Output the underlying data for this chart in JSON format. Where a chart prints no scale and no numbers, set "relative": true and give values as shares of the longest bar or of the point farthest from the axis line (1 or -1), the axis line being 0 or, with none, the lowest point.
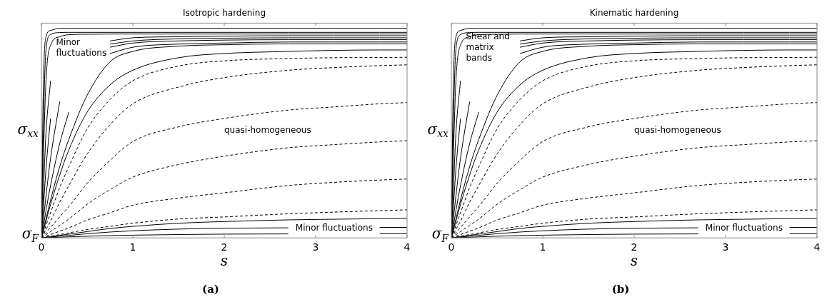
{
  "chart_data": [
    {
      "type": "line",
      "title": "Isotropic hardening",
      "xlabel": "s",
      "ylabel": "σ$_{xx}$",
      "relative": true,
      "xlim": [
        0,
        4
      ],
      "xticks": [
        0,
        1,
        2,
        3,
        4
      ],
      "grid": false,
      "legend": false,
      "marker": "none",
      "x": [
        0,
        0.02,
        0.05,
        0.1,
        0.2,
        0.3,
        0.5,
        0.75,
        1,
        1.5,
        2,
        2.7,
        3.2,
        3.7,
        4
      ],
      "series": [
        {
          "color": "#000000",
          "line_style": "solid",
          "values": [
            0,
            0.7,
            0.96,
            0.99,
            1,
            1,
            1,
            1,
            1,
            1,
            1,
            1,
            1,
            1,
            1
          ]
        },
        {
          "color": "#000000",
          "line_style": "solid",
          "values": [
            0,
            0.5,
            0.9,
            0.97,
            0.98,
            0.981,
            0.981,
            0.981,
            0.981,
            0.981,
            0.981,
            0.981,
            0.981,
            0.981,
            0.981
          ]
        },
        {
          "color": "#000000",
          "line_style": "solid",
          "values": [
            0,
            0.35,
            0.75,
            0.92,
            0.96,
            0.97,
            0.972,
            0.973,
            0.973,
            0.973,
            0.973,
            0.973,
            0.973,
            0.973,
            0.973
          ]
        },
        {
          "color": "#000000",
          "line_style": "solid",
          "x": [
            0,
            0.02,
            0.05,
            0.1
          ],
          "values": [
            0,
            0.2,
            0.5,
            0.75
          ]
        },
        {
          "color": "#000000",
          "line_style": "solid",
          "x": [
            0.75,
            1,
            1.5,
            2,
            2.7,
            3.2,
            3.7,
            4
          ],
          "values": [
            0.94,
            0.955,
            0.96,
            0.963,
            0.965,
            0.965,
            0.965,
            0.965
          ]
        },
        {
          "color": "#000000",
          "line_style": "solid",
          "x": [
            0,
            0.02,
            0.05,
            0.1
          ],
          "values": [
            0,
            0.13,
            0.33,
            0.57
          ]
        },
        {
          "color": "#000000",
          "line_style": "solid",
          "x": [
            0.75,
            1,
            1.5,
            2,
            2.7,
            3.2,
            3.7,
            4
          ],
          "values": [
            0.925,
            0.94,
            0.95,
            0.953,
            0.955,
            0.955,
            0.955,
            0.955
          ]
        },
        {
          "color": "#000000",
          "line_style": "solid",
          "x": [
            0,
            0.02,
            0.05,
            0.1,
            0.2
          ],
          "values": [
            0,
            0.08,
            0.2,
            0.38,
            0.65
          ]
        },
        {
          "color": "#000000",
          "line_style": "solid",
          "x": [
            0.75,
            1,
            1.5,
            2,
            2.7,
            3.2,
            3.7,
            4
          ],
          "values": [
            0.91,
            0.93,
            0.94,
            0.944,
            0.946,
            0.946,
            0.946,
            0.946
          ]
        },
        {
          "color": "#000000",
          "line_style": "solid",
          "x": [
            0,
            0.02,
            0.05,
            0.1,
            0.2,
            0.3
          ],
          "values": [
            0,
            0.05,
            0.13,
            0.25,
            0.45,
            0.6
          ]
        },
        {
          "color": "#000000",
          "line_style": "solid",
          "x": [
            0.75,
            1,
            1.5,
            2,
            2.7,
            3.2,
            3.7,
            4
          ],
          "values": [
            0.88,
            0.91,
            0.925,
            0.93,
            0.935,
            0.935,
            0.935,
            0.935
          ]
        },
        {
          "color": "#000000",
          "line_style": "solid",
          "values": [
            0,
            0.04,
            0.09,
            0.18,
            0.34,
            0.47,
            0.68,
            0.84,
            0.89,
            0.915,
            0.922,
            0.926,
            0.926,
            0.926,
            0.926
          ]
        },
        {
          "color": "#000000",
          "line_style": "solid",
          "values": [
            0,
            0.03,
            0.08,
            0.16,
            0.3,
            0.42,
            0.6,
            0.73,
            0.8,
            0.86,
            0.88,
            0.89,
            0.895,
            0.897,
            0.897
          ]
        },
        {
          "color": "#000000",
          "line_style": "dashed",
          "values": [
            0,
            0.02,
            0.06,
            0.12,
            0.24,
            0.34,
            0.52,
            0.66,
            0.75,
            0.82,
            0.845,
            0.856,
            0.86,
            0.861,
            0.862
          ]
        },
        {
          "color": "#000000",
          "line_style": "dashed",
          "values": [
            0,
            0.015,
            0.04,
            0.08,
            0.17,
            0.25,
            0.4,
            0.54,
            0.64,
            0.72,
            0.765,
            0.8,
            0.813,
            0.822,
            0.826
          ]
        },
        {
          "color": "#000000",
          "line_style": "dashed",
          "values": [
            0,
            0.01,
            0.025,
            0.05,
            0.1,
            0.15,
            0.26,
            0.37,
            0.46,
            0.53,
            0.57,
            0.61,
            0.625,
            0.64,
            0.646
          ]
        },
        {
          "color": "#000000",
          "line_style": "dashed",
          "values": [
            0,
            0.006,
            0.015,
            0.03,
            0.06,
            0.09,
            0.16,
            0.23,
            0.29,
            0.35,
            0.39,
            0.43,
            0.445,
            0.458,
            0.464
          ]
        },
        {
          "color": "#000000",
          "line_style": "dashed",
          "values": [
            0,
            0.003,
            0.008,
            0.016,
            0.032,
            0.048,
            0.085,
            0.12,
            0.156,
            0.19,
            0.215,
            0.25,
            0.265,
            0.276,
            0.281
          ]
        },
        {
          "color": "#000000",
          "line_style": "dashed",
          "values": [
            0,
            0.0015,
            0.004,
            0.008,
            0.016,
            0.024,
            0.04,
            0.055,
            0.07,
            0.09,
            0.1,
            0.115,
            0.123,
            0.13,
            0.134
          ]
        },
        {
          "color": "#000000",
          "line_style": "solid",
          "values": [
            0,
            0.001,
            0.003,
            0.006,
            0.012,
            0.018,
            0.03,
            0.045,
            0.055,
            0.07,
            0.078,
            0.086,
            0.089,
            0.092,
            0.093
          ]
        },
        {
          "color": "#000000",
          "line_style": "solid",
          "x": [
            0,
            0.05,
            0.1,
            0.2,
            0.3,
            0.5,
            0.75,
            1,
            1.5,
            2,
            2.7
          ],
          "values": [
            0,
            0.002,
            0.004,
            0.008,
            0.012,
            0.02,
            0.028,
            0.034,
            0.042,
            0.046,
            0.048
          ]
        },
        {
          "color": "#000000",
          "line_style": "solid",
          "x": [
            3.7,
            4
          ],
          "values": [
            0.05,
            0.05
          ]
        },
        {
          "color": "#000000",
          "line_style": "solid",
          "x": [
            0,
            0.05,
            0.1,
            0.2,
            0.3,
            0.5,
            0.75,
            1,
            1.5,
            2,
            2.7
          ],
          "values": [
            0,
            0.001,
            0.002,
            0.003,
            0.005,
            0.008,
            0.011,
            0.013,
            0.016,
            0.018,
            0.019
          ]
        },
        {
          "color": "#000000",
          "line_style": "solid",
          "x": [
            3.7,
            4
          ],
          "values": [
            0.02,
            0.02
          ]
        }
      ],
      "annotations": [
        "σ$_{F}$",
        "Minor fluctuations",
        "quasi-homogeneous",
        "Minor fluctuations",
        "(a)"
      ]
    },
    {
      "type": "line",
      "title": "Kinematic hardening",
      "xlabel": "s",
      "ylabel": "σ$_{xx}$",
      "relative": true,
      "xlim": [
        0,
        4
      ],
      "xticks": [
        0,
        1,
        2,
        3,
        4
      ],
      "grid": false,
      "legend": false,
      "marker": "none",
      "x": [
        0,
        0.02,
        0.05,
        0.1,
        0.2,
        0.3,
        0.5,
        0.75,
        1,
        1.5,
        2,
        2.7,
        3.2,
        3.7,
        4
      ],
      "series": [
        {
          "color": "#000000",
          "line_style": "solid",
          "values": [
            0,
            0.7,
            0.96,
            0.99,
            1,
            1,
            1,
            1,
            1,
            1,
            1,
            1,
            1,
            1,
            1
          ]
        },
        {
          "color": "#000000",
          "line_style": "solid",
          "values": [
            0,
            0.5,
            0.9,
            0.97,
            0.98,
            0.981,
            0.981,
            0.981,
            0.981,
            0.981,
            0.981,
            0.981,
            0.981,
            0.981,
            0.981
          ]
        },
        {
          "color": "#000000",
          "line_style": "solid",
          "values": [
            0,
            0.35,
            0.75,
            0.92,
            0.96,
            0.97,
            0.972,
            0.973,
            0.973,
            0.973,
            0.973,
            0.973,
            0.973,
            0.973,
            0.973
          ]
        },
        {
          "color": "#000000",
          "line_style": "solid",
          "x": [
            0,
            0.02,
            0.05,
            0.1
          ],
          "values": [
            0,
            0.2,
            0.5,
            0.75
          ]
        },
        {
          "color": "#000000",
          "line_style": "solid",
          "x": [
            0.75,
            1,
            1.5,
            2,
            2.7,
            3.2,
            3.7,
            4
          ],
          "values": [
            0.94,
            0.955,
            0.96,
            0.963,
            0.965,
            0.965,
            0.965,
            0.965
          ]
        },
        {
          "color": "#000000",
          "line_style": "solid",
          "x": [
            0,
            0.02,
            0.05,
            0.1
          ],
          "values": [
            0,
            0.13,
            0.33,
            0.57
          ]
        },
        {
          "color": "#000000",
          "line_style": "solid",
          "x": [
            0.75,
            1,
            1.5,
            2,
            2.7,
            3.2,
            3.7,
            4
          ],
          "values": [
            0.925,
            0.94,
            0.95,
            0.953,
            0.955,
            0.955,
            0.955,
            0.955
          ]
        },
        {
          "color": "#000000",
          "line_style": "solid",
          "x": [
            0,
            0.02,
            0.05,
            0.1,
            0.2
          ],
          "values": [
            0,
            0.08,
            0.2,
            0.38,
            0.65
          ]
        },
        {
          "color": "#000000",
          "line_style": "solid",
          "x": [
            0.75,
            1,
            1.5,
            2,
            2.7,
            3.2,
            3.7,
            4
          ],
          "values": [
            0.91,
            0.93,
            0.94,
            0.944,
            0.946,
            0.946,
            0.946,
            0.946
          ]
        },
        {
          "color": "#000000",
          "line_style": "solid",
          "x": [
            0,
            0.02,
            0.05,
            0.1,
            0.2,
            0.3
          ],
          "values": [
            0,
            0.05,
            0.13,
            0.25,
            0.45,
            0.6
          ]
        },
        {
          "color": "#000000",
          "line_style": "solid",
          "x": [
            0.75,
            1,
            1.5,
            2,
            2.7,
            3.2,
            3.7,
            4
          ],
          "values": [
            0.88,
            0.91,
            0.925,
            0.93,
            0.935,
            0.935,
            0.935,
            0.935
          ]
        },
        {
          "color": "#000000",
          "line_style": "solid",
          "values": [
            0,
            0.04,
            0.09,
            0.18,
            0.34,
            0.47,
            0.68,
            0.84,
            0.89,
            0.915,
            0.922,
            0.926,
            0.926,
            0.926,
            0.926
          ]
        },
        {
          "color": "#000000",
          "line_style": "solid",
          "values": [
            0,
            0.03,
            0.08,
            0.16,
            0.3,
            0.42,
            0.6,
            0.73,
            0.8,
            0.86,
            0.88,
            0.89,
            0.895,
            0.897,
            0.897
          ]
        },
        {
          "color": "#000000",
          "line_style": "dashed",
          "values": [
            0,
            0.02,
            0.06,
            0.12,
            0.24,
            0.34,
            0.52,
            0.66,
            0.75,
            0.82,
            0.845,
            0.856,
            0.86,
            0.861,
            0.862
          ]
        },
        {
          "color": "#000000",
          "line_style": "dashed",
          "values": [
            0,
            0.015,
            0.04,
            0.08,
            0.17,
            0.25,
            0.4,
            0.54,
            0.64,
            0.72,
            0.765,
            0.8,
            0.813,
            0.822,
            0.826
          ]
        },
        {
          "color": "#000000",
          "line_style": "dashed",
          "values": [
            0,
            0.01,
            0.025,
            0.05,
            0.1,
            0.15,
            0.26,
            0.37,
            0.46,
            0.53,
            0.57,
            0.61,
            0.625,
            0.64,
            0.646
          ]
        },
        {
          "color": "#000000",
          "line_style": "dashed",
          "values": [
            0,
            0.006,
            0.015,
            0.03,
            0.06,
            0.09,
            0.16,
            0.23,
            0.29,
            0.35,
            0.39,
            0.43,
            0.445,
            0.458,
            0.464
          ]
        },
        {
          "color": "#000000",
          "line_style": "dashed",
          "values": [
            0,
            0.003,
            0.008,
            0.016,
            0.032,
            0.048,
            0.085,
            0.12,
            0.156,
            0.19,
            0.215,
            0.25,
            0.265,
            0.276,
            0.281
          ]
        },
        {
          "color": "#000000",
          "line_style": "dashed",
          "values": [
            0,
            0.0015,
            0.004,
            0.008,
            0.016,
            0.024,
            0.04,
            0.055,
            0.07,
            0.09,
            0.1,
            0.115,
            0.123,
            0.13,
            0.134
          ]
        },
        {
          "color": "#000000",
          "line_style": "solid",
          "values": [
            0,
            0.001,
            0.003,
            0.006,
            0.012,
            0.018,
            0.03,
            0.045,
            0.055,
            0.07,
            0.078,
            0.086,
            0.089,
            0.092,
            0.093
          ]
        },
        {
          "color": "#000000",
          "line_style": "solid",
          "x": [
            0,
            0.05,
            0.1,
            0.2,
            0.3,
            0.5,
            0.75,
            1,
            1.5,
            2,
            2.7
          ],
          "values": [
            0,
            0.002,
            0.004,
            0.008,
            0.012,
            0.02,
            0.028,
            0.034,
            0.042,
            0.046,
            0.048
          ]
        },
        {
          "color": "#000000",
          "line_style": "solid",
          "x": [
            3.7,
            4
          ],
          "values": [
            0.05,
            0.05
          ]
        },
        {
          "color": "#000000",
          "line_style": "solid",
          "x": [
            0,
            0.05,
            0.1,
            0.2,
            0.3,
            0.5,
            0.75,
            1,
            1.5,
            2,
            2.7
          ],
          "values": [
            0,
            0.001,
            0.002,
            0.003,
            0.005,
            0.008,
            0.011,
            0.013,
            0.016,
            0.018,
            0.019
          ]
        },
        {
          "color": "#000000",
          "line_style": "solid",
          "x": [
            3.7,
            4
          ],
          "values": [
            0.02,
            0.02
          ]
        }
      ],
      "annotations": [
        "σ$_{F}$",
        "Shear and matrix bands",
        "quasi-homogeneous",
        "Minor fluctuations",
        "(b)"
      ]
    }
  ]
}
